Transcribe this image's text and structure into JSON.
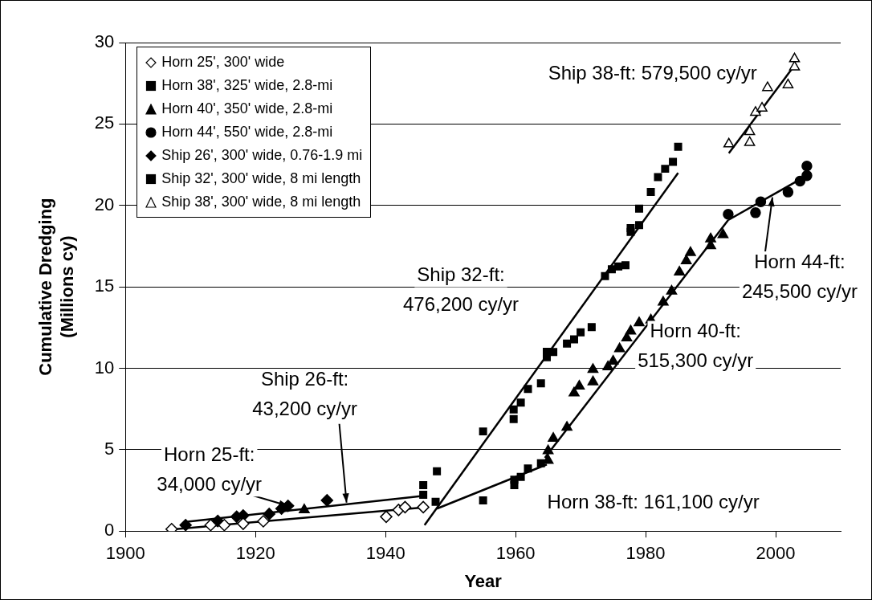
{
  "chart_data": {
    "type": "scatter",
    "xlabel": "Year",
    "ylabel": "Cumulative Dredging\n(Millions cy)",
    "xlim": [
      1900,
      2010
    ],
    "xticks": [
      1900,
      1920,
      1940,
      1960,
      1980,
      2000
    ],
    "ylim": [
      0,
      30
    ],
    "yticks": [
      0,
      5,
      10,
      15,
      20,
      25,
      30
    ],
    "grid": "y",
    "legend": "top left",
    "series": [
      {
        "name": "Horn 25', 300' wide",
        "type": "scatter",
        "marker": "diamond",
        "color": "#ffffff",
        "x": [
          1907.1,
          1913.1,
          1915.2,
          1918.1,
          1921.2,
          1940.1,
          1942,
          1943,
          1945.8
        ],
        "values": [
          0.12,
          0.37,
          0.37,
          0.45,
          0.6,
          0.88,
          1.3,
          1.47,
          1.47
        ]
      },
      {
        "name": "Horn 38', 325' wide, 2.8-mi",
        "type": "scatter",
        "marker": "square",
        "color": "#000000",
        "x": [
          1947.7,
          1955,
          1959.8,
          1959.8,
          1960.8,
          1961.9,
          1963.9
        ],
        "values": [
          1.8,
          1.89,
          2.82,
          3.16,
          3.33,
          3.84,
          4.17
        ]
      },
      {
        "name": "Horn 40', 350' wide, 2.8-mi",
        "type": "scatter",
        "marker": "triangle",
        "color": "#000000",
        "x": [
          1927.5,
          1965,
          1965,
          1965.8,
          1967.9,
          1969,
          1969.8,
          1971.9,
          1971.9,
          1974.2,
          1975,
          1976,
          1977.1,
          1977.7,
          1979,
          1980.8,
          1982.7,
          1984,
          1985.2,
          1986.25,
          1986.9,
          1990,
          1990,
          1991.9
        ],
        "values": [
          1.3,
          4.34,
          4.93,
          5.69,
          6.37,
          8.48,
          8.9,
          9.16,
          9.92,
          10.09,
          10.43,
          11.19,
          11.86,
          12.28,
          12.79,
          12.96,
          14.05,
          14.73,
          15.9,
          16.6,
          17.1,
          17.52,
          17.94,
          18.2
        ]
      },
      {
        "name": "Horn 44', 550' wide, 2.8-mi",
        "type": "scatter",
        "marker": "circle",
        "color": "#000000",
        "x": [
          1992.7,
          1996.9,
          1997.7,
          2001.9,
          2003.75,
          2004.8,
          2004.8
        ],
        "values": [
          19.46,
          19.55,
          20.22,
          20.82,
          21.49,
          21.83,
          22.42
        ]
      },
      {
        "name": "Ship 26', 300' wide, 0.76-1.9 mi",
        "type": "scatter",
        "marker": "diamond",
        "color": "#000000",
        "x": [
          1909.25,
          1914.2,
          1917.1,
          1918.1,
          1922.1,
          1924,
          1925,
          1931
        ],
        "values": [
          0.37,
          0.62,
          0.88,
          0.96,
          1.05,
          1.38,
          1.55,
          1.89
        ]
      },
      {
        "name": "Ship 32', 300' wide, 8 mi length",
        "type": "scatter",
        "marker": "square",
        "color": "#000000",
        "x": [
          1945.8,
          1945.8,
          1947.9,
          1955,
          1959.7,
          1959.7,
          1960.8,
          1961.9,
          1963.9,
          1964.8,
          1964.8,
          1965.8,
          1967.9,
          1969,
          1970,
          1971.7,
          1973.75,
          1974.8,
          1975.8,
          1976.9,
          1977.7,
          1977.7,
          1979,
          1979,
          1980.8,
          1981.9,
          1983,
          1984.2,
          1985
        ],
        "values": [
          2.23,
          2.82,
          3.67,
          6.12,
          6.88,
          7.47,
          7.89,
          8.73,
          9.07,
          10.68,
          11.01,
          11.0,
          11.52,
          11.77,
          12.2,
          12.53,
          15.66,
          16.08,
          16.25,
          16.33,
          18.37,
          18.6,
          18.79,
          19.8,
          20.82,
          21.74,
          22.25,
          22.67,
          23.6
        ]
      },
      {
        "name": "Ship 38', 300' wide, 8 mi length",
        "type": "scatter",
        "marker": "triangle",
        "color": "#ffffff",
        "x": [
          1992.8,
          1996,
          1996,
          1996.9,
          1997.9,
          1998.75,
          2001.9,
          2002.9,
          2002.9
        ],
        "values": [
          23.77,
          23.86,
          24.53,
          25.71,
          25.97,
          27.23,
          27.4,
          28.5,
          29.0
        ]
      },
      {
        "type": "line",
        "marker": "none",
        "color": "#000000",
        "x": [
          1907,
          1946.25
        ],
        "values": [
          0.1,
          1.47
        ]
      },
      {
        "type": "line",
        "marker": "none",
        "color": "#000000",
        "x": [
          1909,
          1945.6
        ],
        "values": [
          0.55,
          2.15
        ]
      },
      {
        "type": "line",
        "marker": "none",
        "color": "#000000",
        "x": [
          1946,
          1985
        ],
        "values": [
          0.37,
          22.0
        ]
      },
      {
        "type": "line",
        "marker": "none",
        "color": "#000000",
        "x": [
          1947.9,
          1964.8
        ],
        "values": [
          1.38,
          4.09
        ]
      },
      {
        "type": "line",
        "marker": "none",
        "color": "#000000",
        "x": [
          1964.5,
          1992.7
        ],
        "values": [
          4.5,
          19.1
        ]
      },
      {
        "type": "line",
        "marker": "none",
        "color": "#000000",
        "x": [
          1992.7,
          2003.75
        ],
        "values": [
          19.1,
          21.6
        ]
      },
      {
        "type": "line",
        "marker": "none",
        "color": "#000000",
        "x": [
          1992.8,
          2003.1
        ],
        "values": [
          23.2,
          28.7
        ]
      }
    ],
    "annotations": [
      {
        "text": "Horn 25-ft: 34,000 cy/yr",
        "x": 1925,
        "y": 1.55
      },
      {
        "text": "Ship 26-ft: 43,200 cy/yr",
        "x": 1934,
        "y": 1.75
      },
      "Ship 32-ft: 476,200 cy/yr",
      "Horn 38-ft: 161,100 cy/yr",
      "Horn 40-ft: 515,300 cy/yr",
      {
        "text": "Horn 44-ft: 245,500 cy/yr",
        "x": 1999.5,
        "y": 20.5
      },
      "Ship 38-ft: 579,500 cy/yr"
    ]
  }
}
